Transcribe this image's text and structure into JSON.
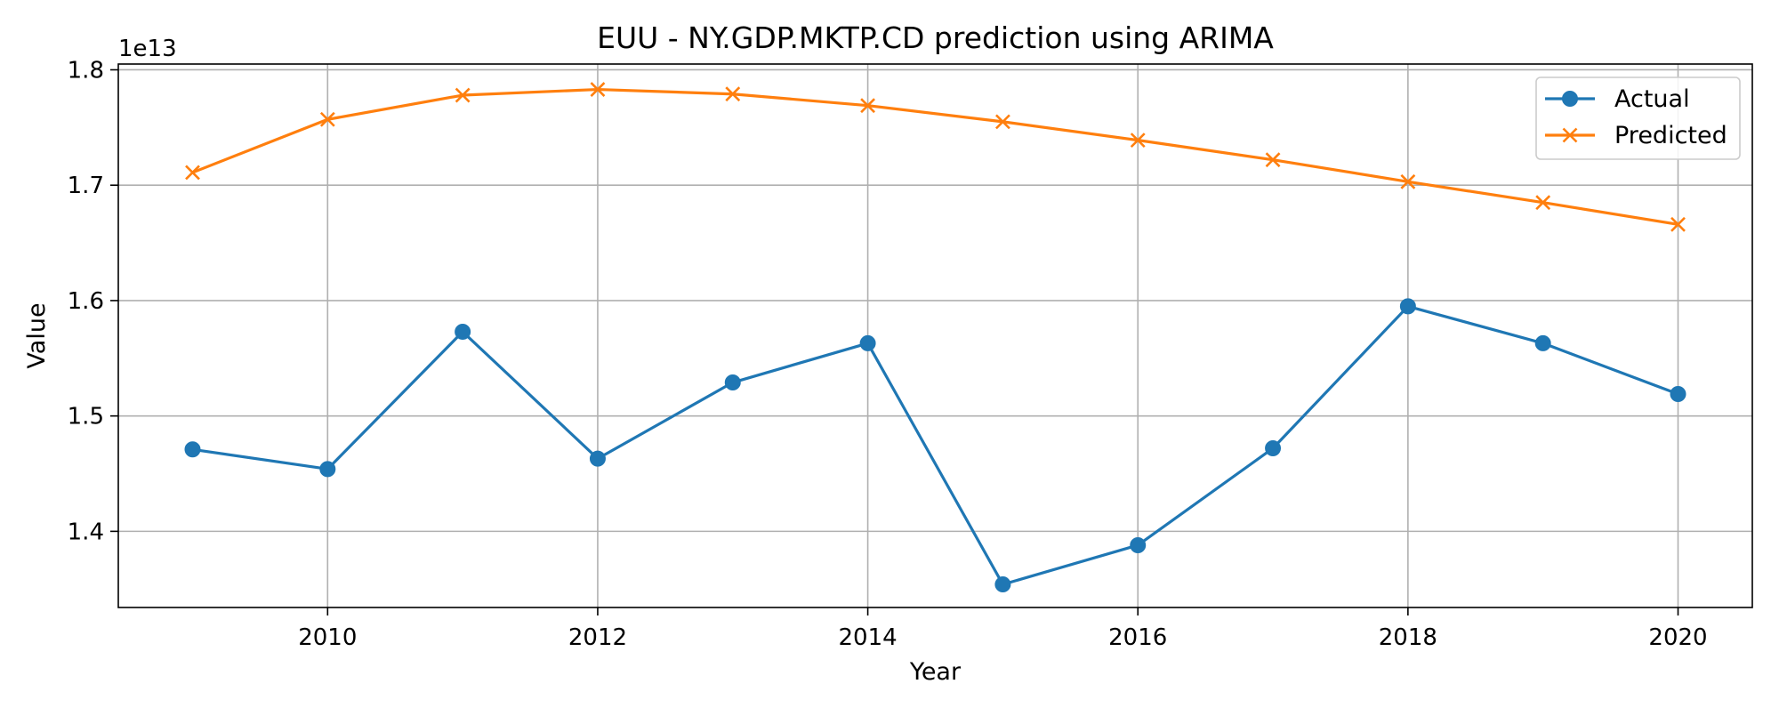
{
  "chart_data": {
    "type": "line",
    "title": "EUU - NY.GDP.MKTP.CD prediction using ARIMA",
    "xlabel": "Year",
    "ylabel": "Value",
    "y_offset_label": "1e13",
    "x": [
      2009,
      2010,
      2011,
      2012,
      2013,
      2014,
      2015,
      2016,
      2017,
      2018,
      2019,
      2020
    ],
    "xlim": [
      2008.45,
      2020.55
    ],
    "ylim": [
      1.334,
      1.805
    ],
    "y_units_multiplier": 10000000000000.0,
    "x_ticks": [
      2010,
      2012,
      2014,
      2016,
      2018,
      2020
    ],
    "x_tick_labels": [
      "2010",
      "2012",
      "2014",
      "2016",
      "2018",
      "2020"
    ],
    "y_ticks": [
      1.4,
      1.5,
      1.6,
      1.7,
      1.8
    ],
    "y_tick_labels": [
      "1.4",
      "1.5",
      "1.6",
      "1.7",
      "1.8"
    ],
    "grid": true,
    "legend_position": "top-right",
    "series": [
      {
        "name": "Actual",
        "color": "#1f77b4",
        "marker": "circle",
        "values": [
          1.471,
          1.454,
          1.573,
          1.463,
          1.529,
          1.563,
          1.354,
          1.388,
          1.472,
          1.595,
          1.563,
          1.519
        ]
      },
      {
        "name": "Predicted",
        "color": "#ff7f0e",
        "marker": "x",
        "values": [
          1.711,
          1.757,
          1.778,
          1.783,
          1.779,
          1.769,
          1.755,
          1.739,
          1.722,
          1.703,
          1.685,
          1.666
        ]
      }
    ]
  }
}
